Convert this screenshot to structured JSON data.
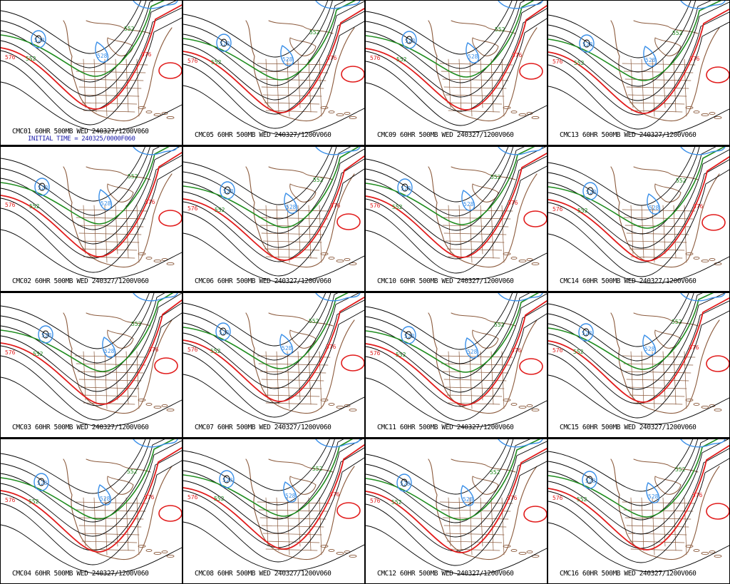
{
  "colors": {
    "background": "#ffffff",
    "frame": "#000000",
    "contour_default": "#000000",
    "contour_low": "#3a8fe8",
    "contour_mid": "#1e8c1e",
    "contour_high": "#e11b1b",
    "geography": "#8b5a3c",
    "initial_time": "#1a1aa8"
  },
  "contour_labels": {
    "mid": "552",
    "high": "576",
    "low": "528"
  },
  "initial_time": "INITIAL TIME = 240325/0000F060",
  "panels": [
    {
      "caption": "CMC01 60HR 500MB WED 240327/1200V060"
    },
    {
      "caption": "CMC05 60HR 500MB WED 240327/1200V060"
    },
    {
      "caption": "CMC09 60HR 500MB WED 240327/1200V060"
    },
    {
      "caption": "CMC13 60HR 500MB WED 240327/1200V060"
    },
    {
      "caption": "CMC02 60HR 500MB WED 240327/1200V060"
    },
    {
      "caption": "CMC06 60HR 500MB WED 240327/1200V060"
    },
    {
      "caption": "CMC10 60HR 500MB WED 240327/1200V060"
    },
    {
      "caption": "CMC14 60HR 500MB WED 240327/1200V060"
    },
    {
      "caption": "CMC03 60HR 500MB WED 240327/1200V060"
    },
    {
      "caption": "CMC07 60HR 500MB WED 240327/1200V060"
    },
    {
      "caption": "CMC11 60HR 500MB WED 240327/1200V060"
    },
    {
      "caption": "CMC15 60HR 500MB WED 240327/1200V060"
    },
    {
      "caption": "CMC04 60HR 500MB WED 240327/1200V060"
    },
    {
      "caption": "CMC08 60HR 500MB WED 240327/1200V060"
    },
    {
      "caption": "CMC12 60HR 500MB WED 240327/1200V060"
    },
    {
      "caption": "CMC16 60HR 500MB WED 240327/1200V060"
    }
  ]
}
